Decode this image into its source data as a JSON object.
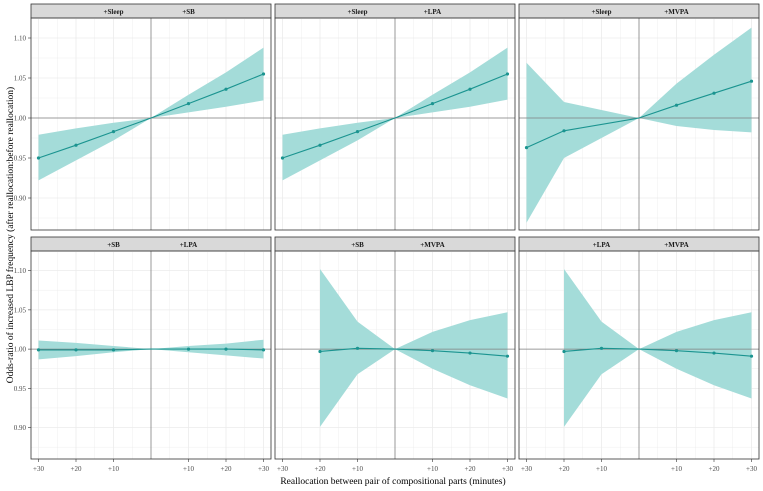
{
  "chart_data": {
    "type": "line",
    "xlabel": "Reallocation between pair of compositional parts (minutes)",
    "ylabel": "Odds-ratio of increased LBP frequency (after reallocation:before reallocation)",
    "x": [
      -30,
      -20,
      -10,
      10,
      20,
      30
    ],
    "x_tick_labels": [
      "+30",
      "+20",
      "+10",
      "+10",
      "+20",
      "+30"
    ],
    "xlim": [
      -32,
      32
    ],
    "ylim": [
      0.86,
      1.125
    ],
    "y_ticks": [
      0.9,
      0.95,
      1.0,
      1.05,
      1.1
    ],
    "y_tick_labels": [
      "0.90",
      "0.95",
      "1.00",
      "1.05",
      "1.10"
    ],
    "reference_line_y": 1.0,
    "grid": true,
    "colors": {
      "line": "#1b9490",
      "band": "#a4dcd9",
      "strip": "#d9d9d9",
      "panel_border": "#333333",
      "grid": "#ebebeb",
      "reference": "#7f7f7f"
    },
    "panels": [
      {
        "left_label": "+Sleep",
        "right_label": "+SB",
        "values": [
          0.95,
          0.966,
          0.983,
          1.018,
          1.036,
          1.055
        ],
        "lower": [
          0.922,
          0.947,
          0.972,
          1.007,
          1.014,
          1.022
        ],
        "upper": [
          0.979,
          0.987,
          0.994,
          1.029,
          1.057,
          1.088
        ]
      },
      {
        "left_label": "+Sleep",
        "right_label": "+LPA",
        "values": [
          0.95,
          0.966,
          0.983,
          1.018,
          1.036,
          1.055
        ],
        "lower": [
          0.922,
          0.947,
          0.972,
          1.007,
          1.014,
          1.023
        ],
        "upper": [
          0.979,
          0.987,
          0.994,
          1.029,
          1.057,
          1.088
        ]
      },
      {
        "left_label": "+Sleep",
        "right_label": "+MVPA",
        "values": [
          0.963,
          0.984,
          null,
          1.016,
          1.031,
          1.046
        ],
        "lower": [
          0.869,
          0.95,
          null,
          0.99,
          0.985,
          0.982
        ],
        "upper": [
          1.069,
          1.02,
          null,
          1.043,
          1.079,
          1.113
        ]
      },
      {
        "left_label": "+SB",
        "right_label": "+LPA",
        "values": [
          0.999,
          0.999,
          0.999,
          1.0,
          1.0,
          0.999
        ],
        "lower": [
          0.987,
          0.991,
          0.996,
          0.996,
          0.992,
          0.988
        ],
        "upper": [
          1.011,
          1.008,
          1.004,
          1.004,
          1.007,
          1.012
        ]
      },
      {
        "left_label": "+SB",
        "right_label": "+MVPA",
        "values": [
          null,
          0.997,
          1.001,
          0.998,
          0.995,
          0.991
        ],
        "lower": [
          null,
          0.901,
          0.968,
          0.975,
          0.954,
          0.937
        ],
        "upper": [
          null,
          1.102,
          1.035,
          1.022,
          1.037,
          1.047
        ]
      },
      {
        "left_label": "+LPA",
        "right_label": "+MVPA",
        "values": [
          null,
          0.997,
          1.001,
          0.998,
          0.995,
          0.991
        ],
        "lower": [
          null,
          0.901,
          0.968,
          0.975,
          0.954,
          0.937
        ],
        "upper": [
          null,
          1.102,
          1.035,
          1.022,
          1.037,
          1.047
        ]
      }
    ]
  }
}
